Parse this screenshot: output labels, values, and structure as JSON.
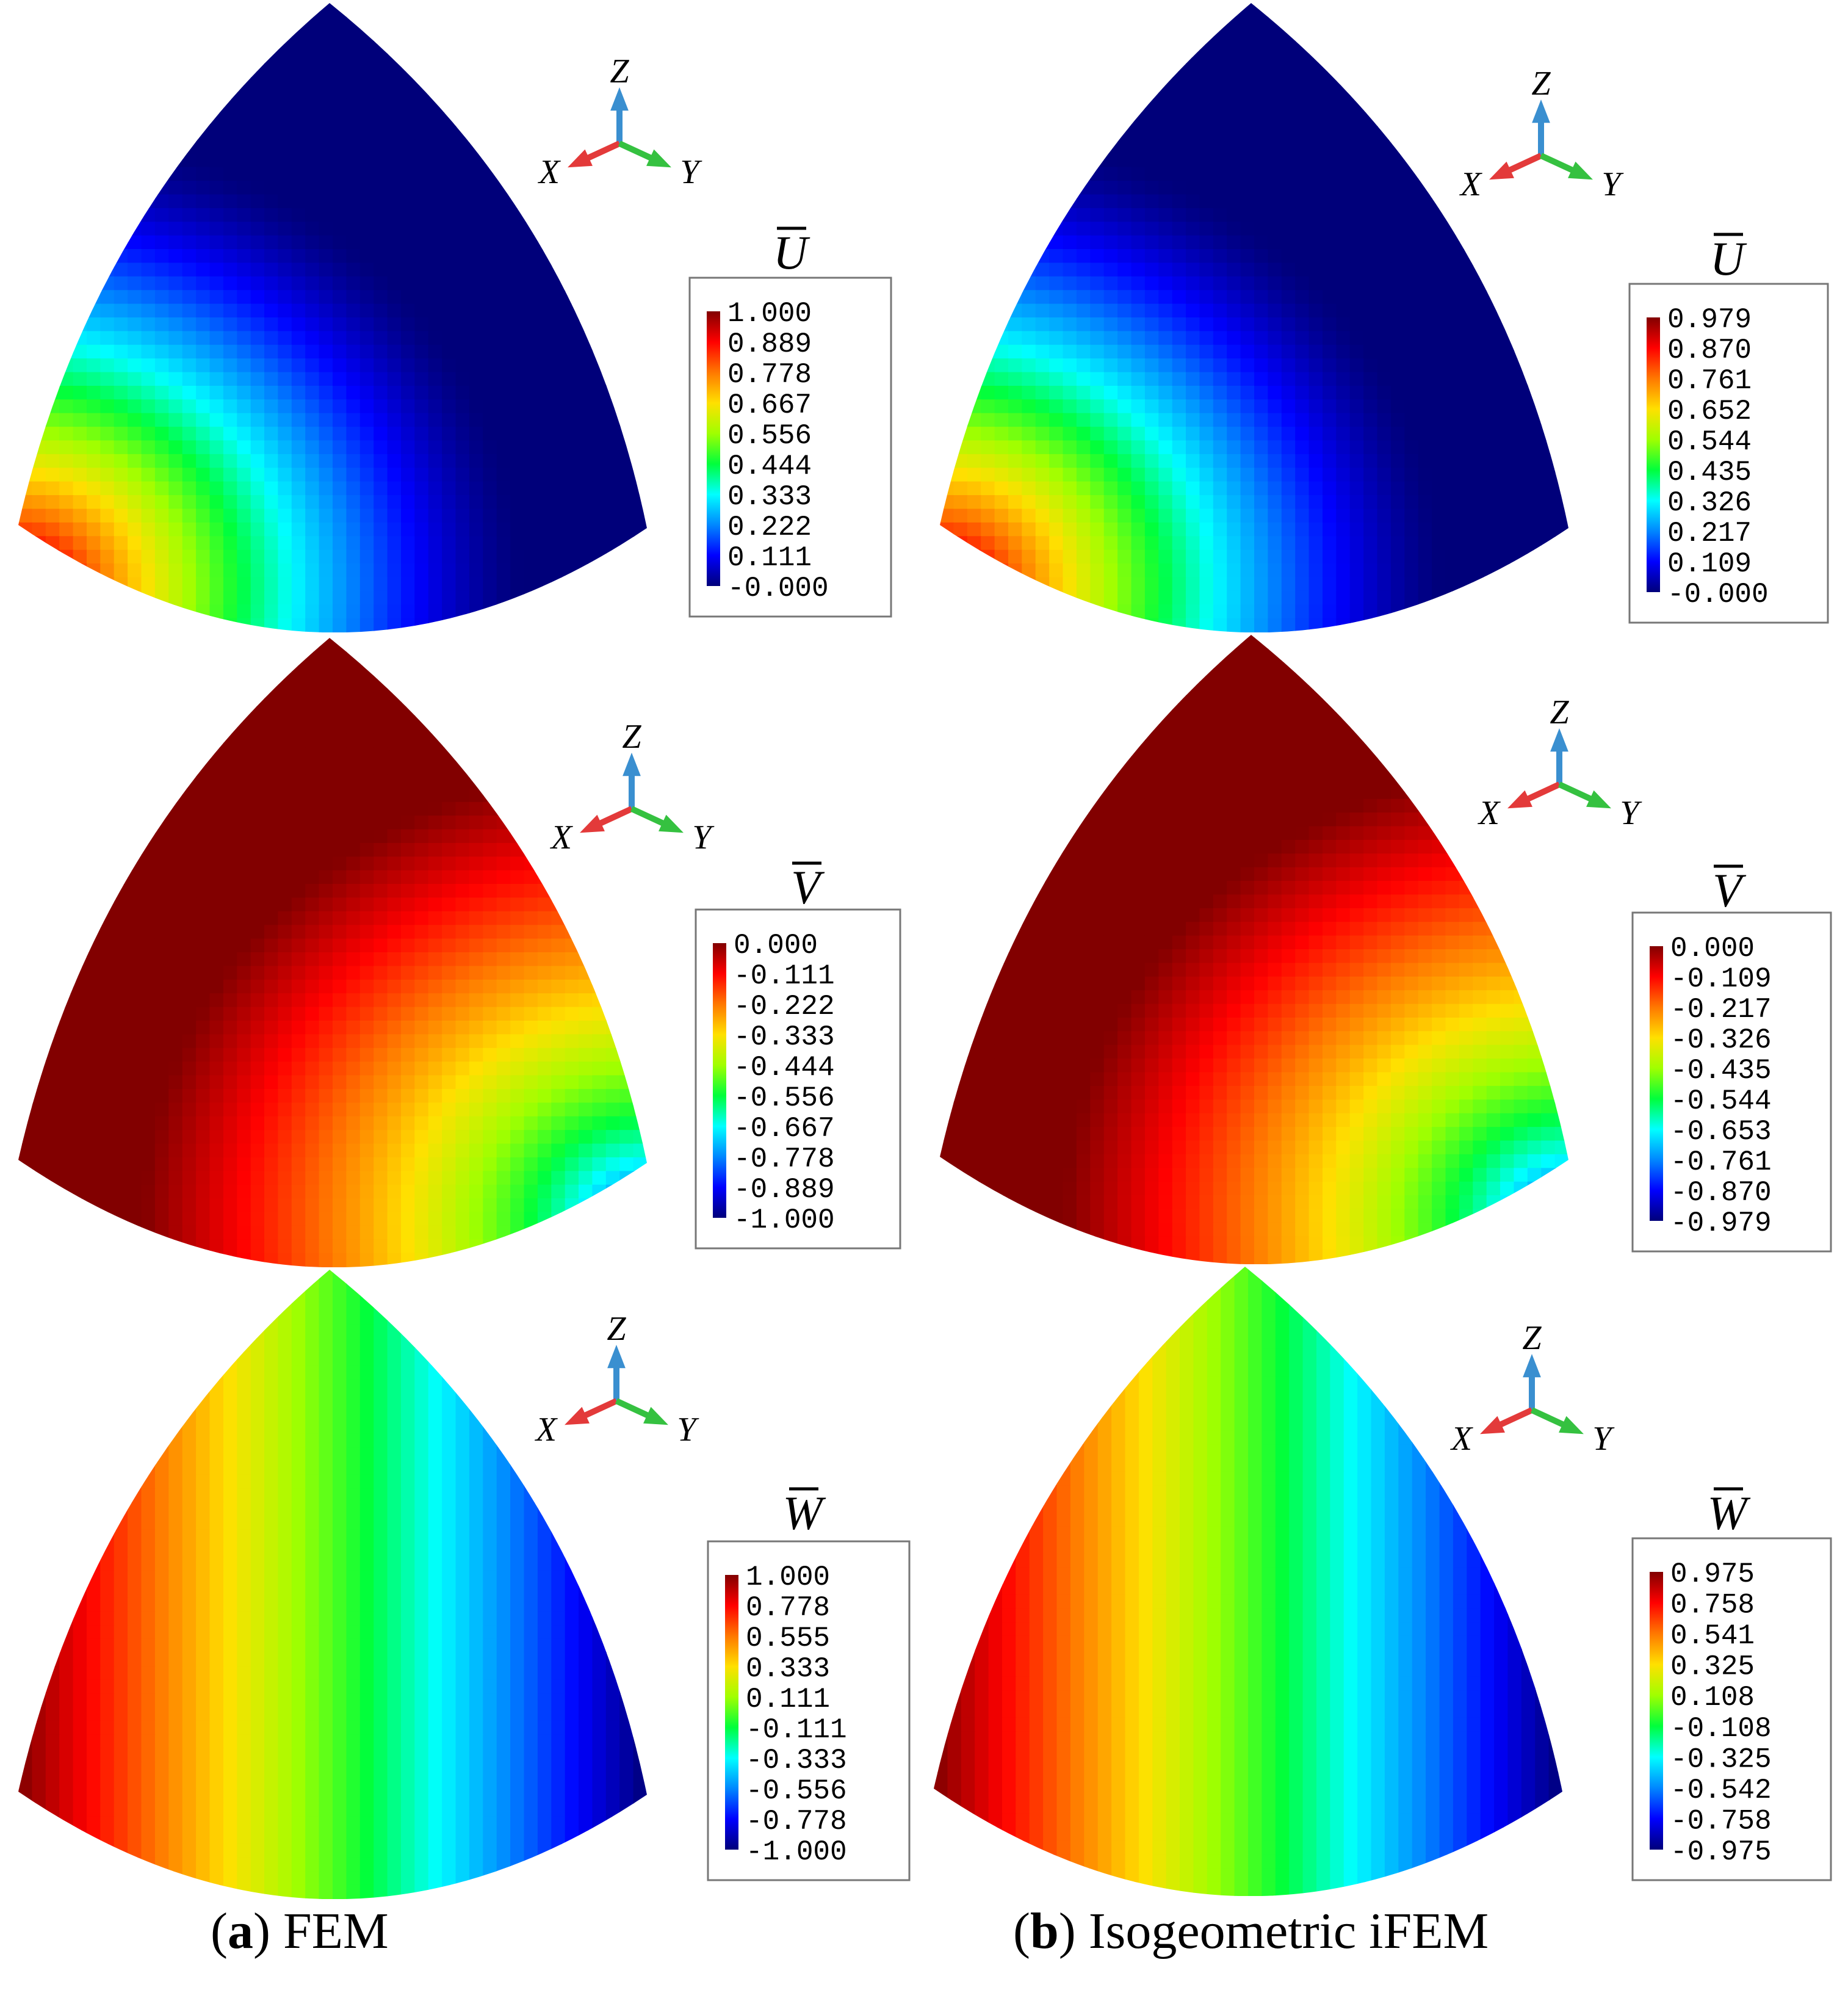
{
  "colors": {
    "ramp": [
      "#00007a",
      "#0000ff",
      "#0087ff",
      "#00ffff",
      "#00ff3c",
      "#a0ff00",
      "#ffe000",
      "#ff7800",
      "#ff0000",
      "#820000"
    ],
    "axis_x": "#e33a3a",
    "axis_y": "#35c140",
    "axis_z": "#3a8fd0"
  },
  "axis_labels": {
    "x": "X",
    "y": "Y",
    "z": "Z"
  },
  "panels": [
    {
      "variable": "U",
      "column": "a",
      "field": "U",
      "legend": [
        "1.000",
        "0.889",
        "0.778",
        "0.667",
        "0.556",
        "0.444",
        "0.333",
        "0.222",
        "0.111",
        "-0.000"
      ]
    },
    {
      "variable": "U",
      "column": "b",
      "field": "U",
      "legend": [
        "0.979",
        "0.870",
        "0.761",
        "0.652",
        "0.544",
        "0.435",
        "0.326",
        "0.217",
        "0.109",
        "-0.000"
      ]
    },
    {
      "variable": "V",
      "column": "a",
      "field": "V",
      "legend": [
        "0.000",
        "-0.111",
        "-0.222",
        "-0.333",
        "-0.444",
        "-0.556",
        "-0.667",
        "-0.778",
        "-0.889",
        "-1.000"
      ]
    },
    {
      "variable": "V",
      "column": "b",
      "field": "V",
      "legend": [
        "0.000",
        "-0.109",
        "-0.217",
        "-0.326",
        "-0.435",
        "-0.544",
        "-0.653",
        "-0.761",
        "-0.870",
        "-0.979"
      ]
    },
    {
      "variable": "W",
      "column": "a",
      "field": "W",
      "legend": [
        "1.000",
        "0.778",
        "0.555",
        "0.333",
        "0.111",
        "-0.111",
        "-0.333",
        "-0.556",
        "-0.778",
        "-1.000"
      ]
    },
    {
      "variable": "W",
      "column": "b",
      "field": "W",
      "legend": [
        "0.975",
        "0.758",
        "0.541",
        "0.325",
        "0.108",
        "-0.108",
        "-0.325",
        "-0.542",
        "-0.758",
        "-0.975"
      ]
    }
  ],
  "captions": [
    {
      "letter": "a",
      "text": "FEM"
    },
    {
      "letter": "b",
      "text": "Isogeometric iFEM"
    }
  ]
}
